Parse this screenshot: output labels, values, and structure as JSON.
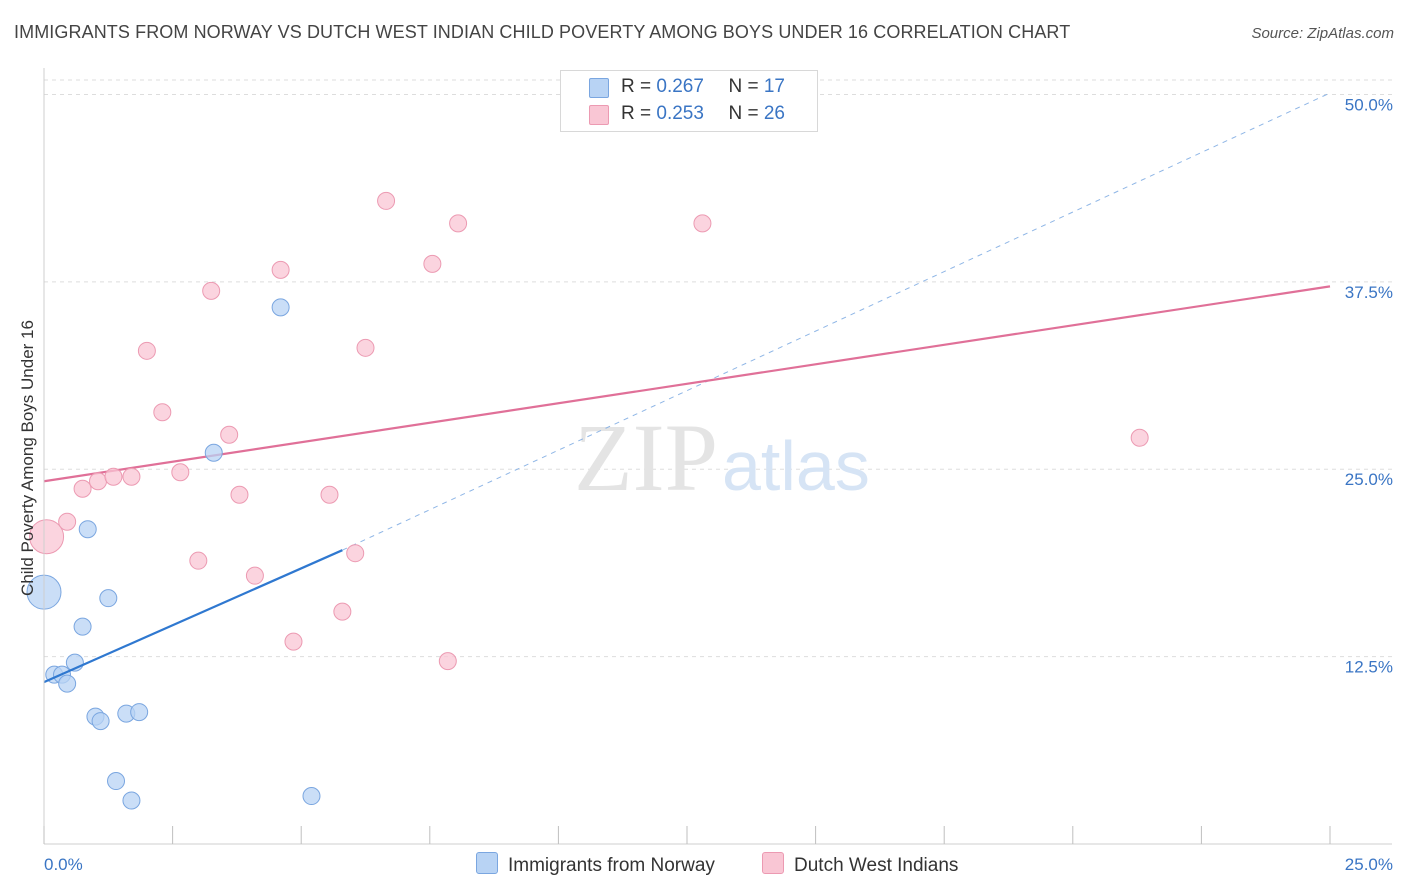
{
  "title": "IMMIGRANTS FROM NORWAY VS DUTCH WEST INDIAN CHILD POVERTY AMONG BOYS UNDER 16 CORRELATION CHART",
  "source": "Source: ZipAtlas.com",
  "watermark": {
    "zip": "ZIP",
    "atlas": "atlas"
  },
  "legend": {
    "norway": {
      "r_label": "R = ",
      "r_value": "0.267",
      "n_label": "N = ",
      "n_value": "17"
    },
    "dutch": {
      "r_label": "R = ",
      "r_value": "0.253",
      "n_label": "N = ",
      "n_value": "26"
    }
  },
  "colors": {
    "norway_fill": "#b8d3f4",
    "norway_stroke": "#7aa6e0",
    "norway_line": "#2f78d0",
    "dutch_fill": "#f9c6d4",
    "dutch_stroke": "#ec9ab2",
    "dutch_line": "#e07098",
    "grid": "#dddddd",
    "tick_text": "#3a75c4"
  },
  "chart_data": {
    "type": "scatter",
    "title": "IMMIGRANTS FROM NORWAY VS DUTCH WEST INDIAN CHILD POVERTY AMONG BOYS UNDER 16 CORRELATION CHART",
    "xlabel": "",
    "ylabel": "Child Poverty Among Boys Under 16",
    "xlim": [
      0,
      25
    ],
    "ylim": [
      0,
      51.5
    ],
    "x_tick_labels": [
      "0.0%",
      "25.0%"
    ],
    "y_ticks": [
      12.5,
      25.0,
      37.5,
      50.0
    ],
    "y_tick_labels": [
      "12.5%",
      "25.0%",
      "37.5%",
      "50.0%"
    ],
    "grid": true,
    "legend_position": "top-center",
    "series": [
      {
        "name": "Immigrants from Norway",
        "points": [
          {
            "x": 0.0,
            "y": 16.8,
            "size": "large"
          },
          {
            "x": 0.2,
            "y": 11.3
          },
          {
            "x": 0.35,
            "y": 11.3
          },
          {
            "x": 0.45,
            "y": 10.7
          },
          {
            "x": 0.6,
            "y": 12.1
          },
          {
            "x": 0.75,
            "y": 14.5
          },
          {
            "x": 0.85,
            "y": 21.0
          },
          {
            "x": 1.25,
            "y": 16.4
          },
          {
            "x": 1.0,
            "y": 8.5
          },
          {
            "x": 1.1,
            "y": 8.2
          },
          {
            "x": 1.6,
            "y": 8.7
          },
          {
            "x": 1.85,
            "y": 8.8
          },
          {
            "x": 1.4,
            "y": 4.2
          },
          {
            "x": 1.7,
            "y": 2.9
          },
          {
            "x": 3.3,
            "y": 26.1
          },
          {
            "x": 4.6,
            "y": 35.8
          },
          {
            "x": 5.2,
            "y": 3.2
          }
        ],
        "trend": {
          "x0": 0.0,
          "y0": 10.8,
          "x1": 5.8,
          "y1": 19.6,
          "extend_dashed_to_x": 25.0,
          "extend_dashed_to_y": 50.1
        }
      },
      {
        "name": "Dutch West Indians",
        "points": [
          {
            "x": 0.05,
            "y": 20.5,
            "size": "large"
          },
          {
            "x": 0.45,
            "y": 21.5
          },
          {
            "x": 0.75,
            "y": 23.7
          },
          {
            "x": 1.05,
            "y": 24.2
          },
          {
            "x": 1.35,
            "y": 24.5
          },
          {
            "x": 1.7,
            "y": 24.5
          },
          {
            "x": 2.0,
            "y": 32.9
          },
          {
            "x": 2.3,
            "y": 28.8
          },
          {
            "x": 2.65,
            "y": 24.8
          },
          {
            "x": 3.0,
            "y": 18.9
          },
          {
            "x": 3.25,
            "y": 36.9
          },
          {
            "x": 3.6,
            "y": 27.3
          },
          {
            "x": 3.8,
            "y": 23.3
          },
          {
            "x": 4.1,
            "y": 17.9
          },
          {
            "x": 4.6,
            "y": 38.3
          },
          {
            "x": 4.85,
            "y": 13.5
          },
          {
            "x": 5.55,
            "y": 23.3
          },
          {
            "x": 5.8,
            "y": 15.5
          },
          {
            "x": 6.05,
            "y": 19.4
          },
          {
            "x": 6.25,
            "y": 33.1
          },
          {
            "x": 6.65,
            "y": 42.9
          },
          {
            "x": 7.55,
            "y": 38.7
          },
          {
            "x": 7.85,
            "y": 12.2
          },
          {
            "x": 8.05,
            "y": 41.4
          },
          {
            "x": 12.8,
            "y": 41.4
          },
          {
            "x": 21.3,
            "y": 27.1
          }
        ],
        "trend": {
          "x0": 0.0,
          "y0": 24.2,
          "x1": 25.0,
          "y1": 37.2
        }
      }
    ]
  }
}
